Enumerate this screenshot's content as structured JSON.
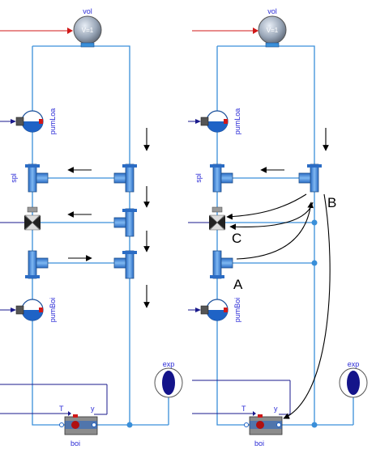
{
  "left_diagram": {
    "vol_label": "vol",
    "vol_value": "V=1",
    "pump_top_label": "pumLoa",
    "splitter_label": "spl",
    "pump_bottom_label": "pumBoi",
    "exp_label": "exp",
    "boiler_label": "boi",
    "boiler_T_label": "T",
    "boiler_y_label": "y"
  },
  "right_diagram": {
    "vol_label": "vol",
    "vol_value": "V=1",
    "pump_top_label": "pumLoa",
    "splitter_label": "spl",
    "pump_bottom_label": "pumBoi",
    "exp_label": "exp",
    "boiler_label": "boi",
    "boiler_T_label": "T",
    "boiler_y_label": "y",
    "annotation_a": "A",
    "annotation_b": "B",
    "annotation_c": "C"
  },
  "colors": {
    "pipe": "#3a8fd9",
    "component": "#4a90e2",
    "signal": "#2a2ad6",
    "boiler_body": "#8c8c8c",
    "red": "#d01818"
  }
}
